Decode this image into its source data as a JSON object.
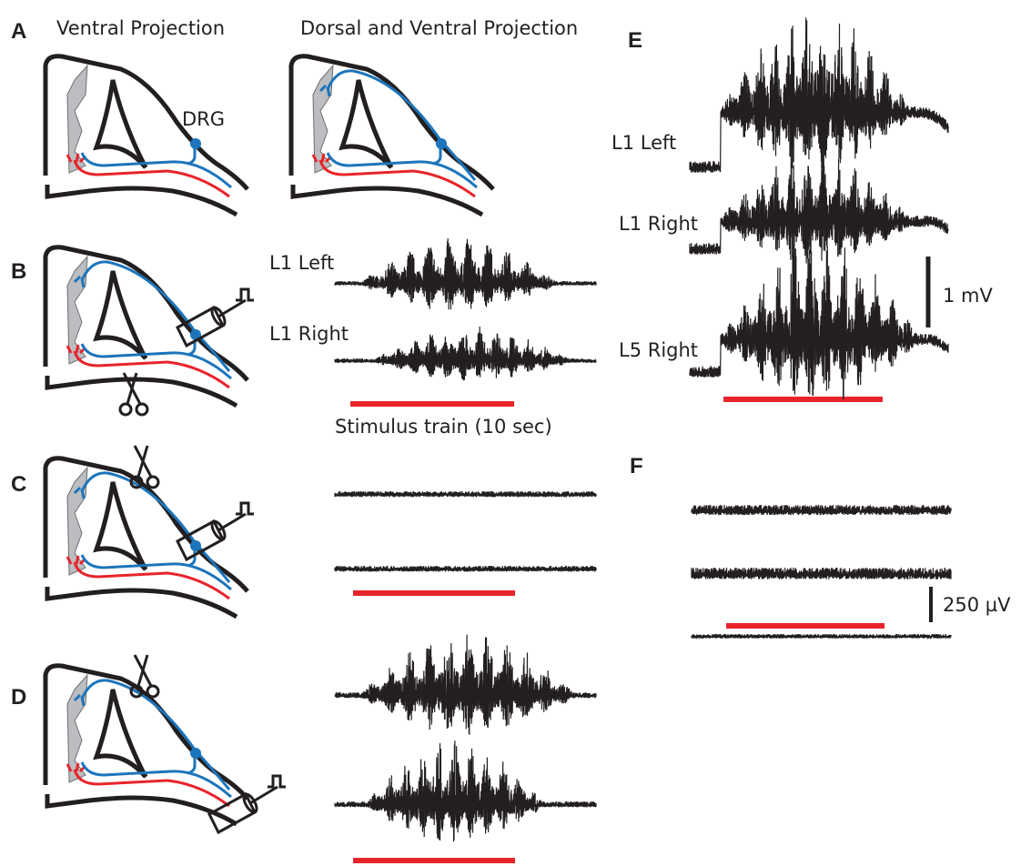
{
  "panel_a": {
    "letter": "A",
    "left_title": "Ventral Projection",
    "right_title": "Dorsal and Ventral Projection",
    "drg_label": "DRG"
  },
  "panel_b": {
    "letter": "B",
    "traces": [
      "L1 Left",
      "L1 Right"
    ],
    "stimulus_label": "Stimulus train (10 sec)"
  },
  "panel_c": {
    "letter": "C"
  },
  "panel_d": {
    "letter": "D"
  },
  "panel_e": {
    "letter": "E",
    "traces": [
      "L1 Left",
      "L1 Right",
      "L5 Right"
    ],
    "scale_label": "1 mV"
  },
  "panel_f": {
    "letter": "F",
    "scale_label": "250 µV"
  }
}
